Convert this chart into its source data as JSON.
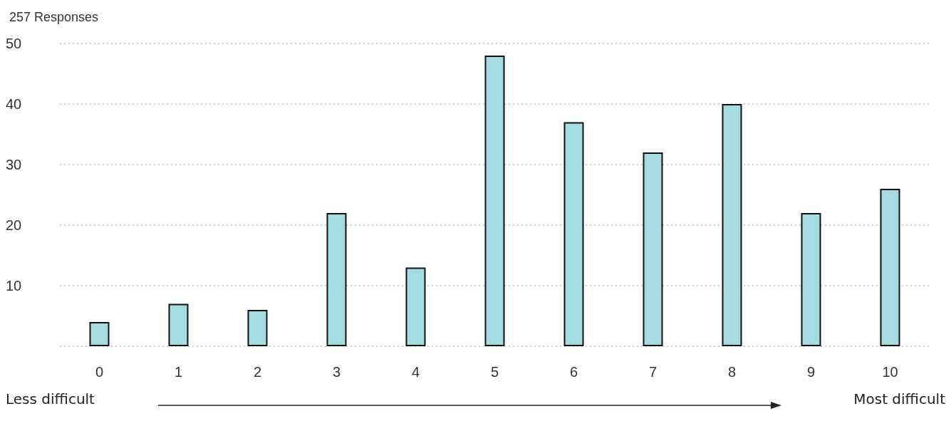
{
  "chart_data": {
    "type": "bar",
    "title": "257 Responses",
    "categories": [
      "0",
      "1",
      "2",
      "3",
      "4",
      "5",
      "6",
      "7",
      "8",
      "9",
      "10"
    ],
    "values": [
      4,
      7,
      6,
      22,
      13,
      48,
      37,
      32,
      40,
      22,
      26
    ],
    "color": "#a5dcdf",
    "ylim": [
      0,
      50
    ],
    "yticks": [
      {
        "value": 0,
        "label": null
      },
      10,
      20,
      30,
      40,
      50
    ],
    "grid": "y",
    "annotations": [
      "Less difficult",
      "Most difficult"
    ]
  }
}
